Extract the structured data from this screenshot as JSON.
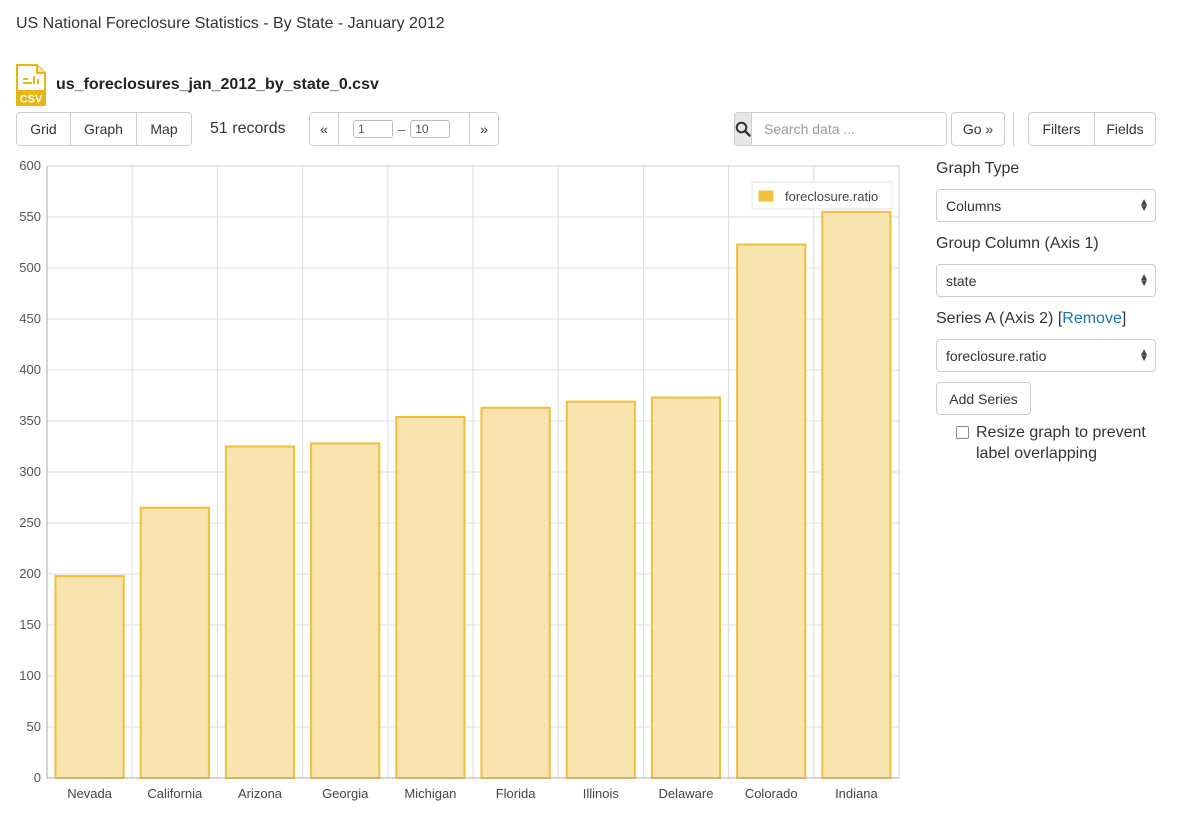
{
  "page": {
    "title": "US National Foreclosure Statistics - By State - January 2012",
    "file_name": "us_foreclosures_jan_2012_by_state_0.csv",
    "file_icon_text": "CSV"
  },
  "toolbar": {
    "view_buttons": [
      "Grid",
      "Graph",
      "Map"
    ],
    "records": "51 records",
    "pager": {
      "prev": "«",
      "next": "»",
      "from": "1",
      "dash": "–",
      "to": "10"
    },
    "search_placeholder": "Search data ...",
    "go_label": "Go »",
    "right_buttons": [
      "Filters",
      "Fields"
    ]
  },
  "sidebar": {
    "graph_type_label": "Graph Type",
    "graph_type_value": "Columns",
    "group_column_label": "Group Column (Axis 1)",
    "group_column_value": "state",
    "series_label": "Series A (Axis 2) [",
    "series_remove": "Remove",
    "series_close": "]",
    "series_value": "foreclosure.ratio",
    "add_series_label": "Add Series",
    "resize_label": "Resize graph to prevent label overlapping",
    "resize_checked": false
  },
  "colors": {
    "bar_fill": "#f9e4b0",
    "bar_stroke": "#efbf3a",
    "legend_swatch": "#f0c040",
    "icon_yellow": "#e8b612",
    "link": "#1a73b5"
  },
  "chart_data": {
    "type": "bar",
    "categories": [
      "Nevada",
      "California",
      "Arizona",
      "Georgia",
      "Michigan",
      "Florida",
      "Illinois",
      "Delaware",
      "Colorado",
      "Indiana"
    ],
    "series": [
      {
        "name": "foreclosure.ratio",
        "values": [
          198,
          265,
          325,
          328,
          354,
          363,
          369,
          373,
          523,
          555
        ]
      }
    ],
    "ylim": [
      0,
      600
    ],
    "yticks": [
      0,
      50,
      100,
      150,
      200,
      250,
      300,
      350,
      400,
      450,
      500,
      550,
      600
    ],
    "grid": true,
    "legend_position": "top-right",
    "title": "",
    "xlabel": "",
    "ylabel": ""
  }
}
